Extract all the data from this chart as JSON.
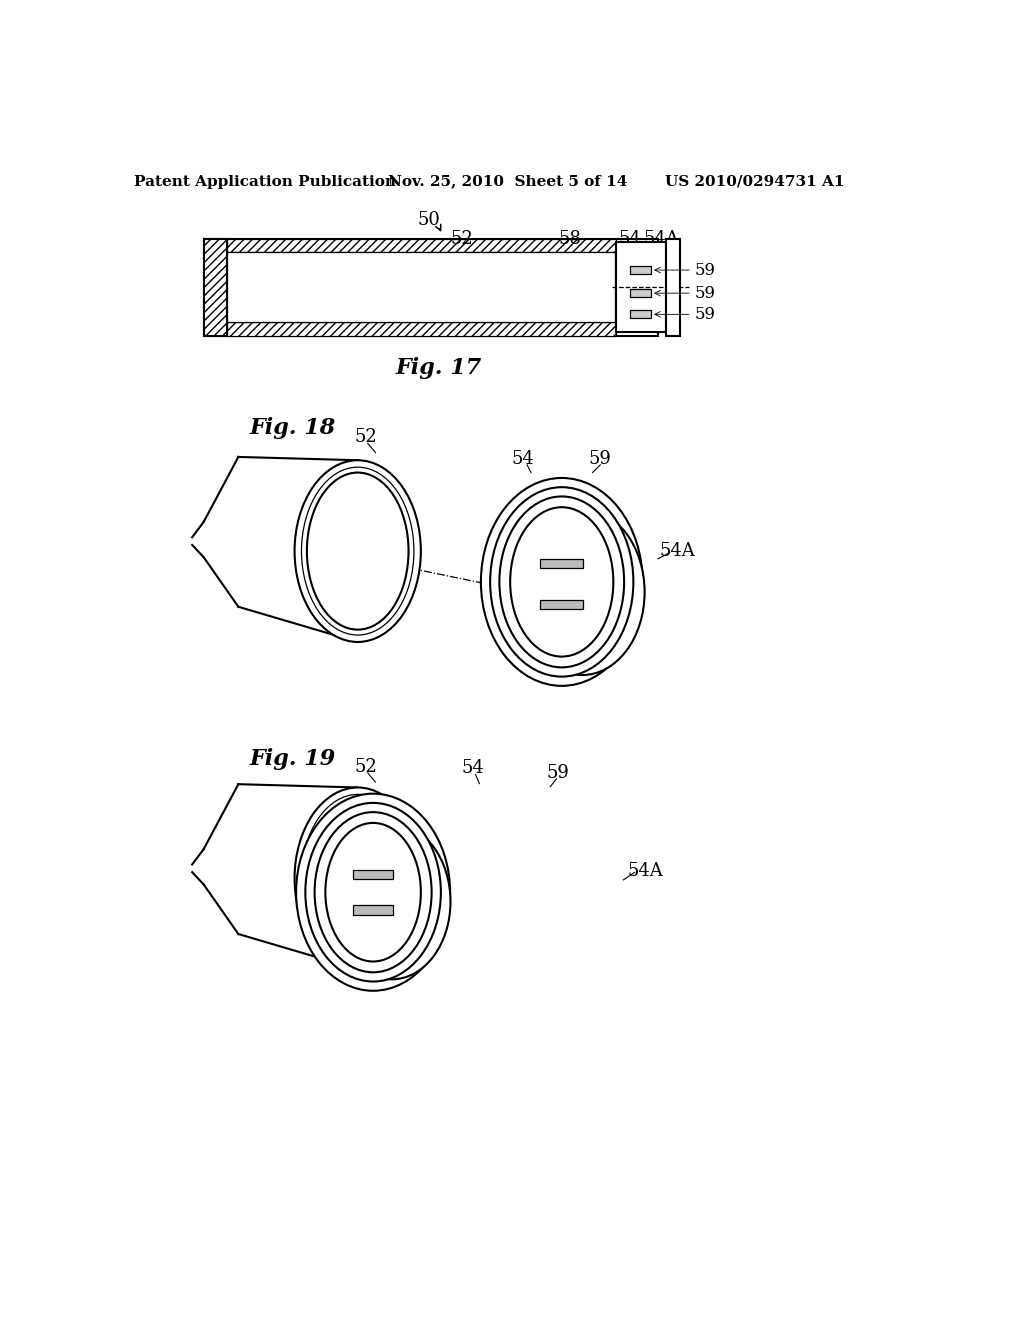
{
  "background_color": "#ffffff",
  "header_left": "Patent Application Publication",
  "header_mid": "Nov. 25, 2010  Sheet 5 of 14",
  "header_right": "US 2010/0294731 A1",
  "header_fontsize": 11,
  "fig17_label": "Fig. 17",
  "fig18_label": "Fig. 18",
  "fig19_label": "Fig. 19",
  "label_fontsize": 16,
  "annotation_fontsize": 13,
  "line_color": "#000000"
}
